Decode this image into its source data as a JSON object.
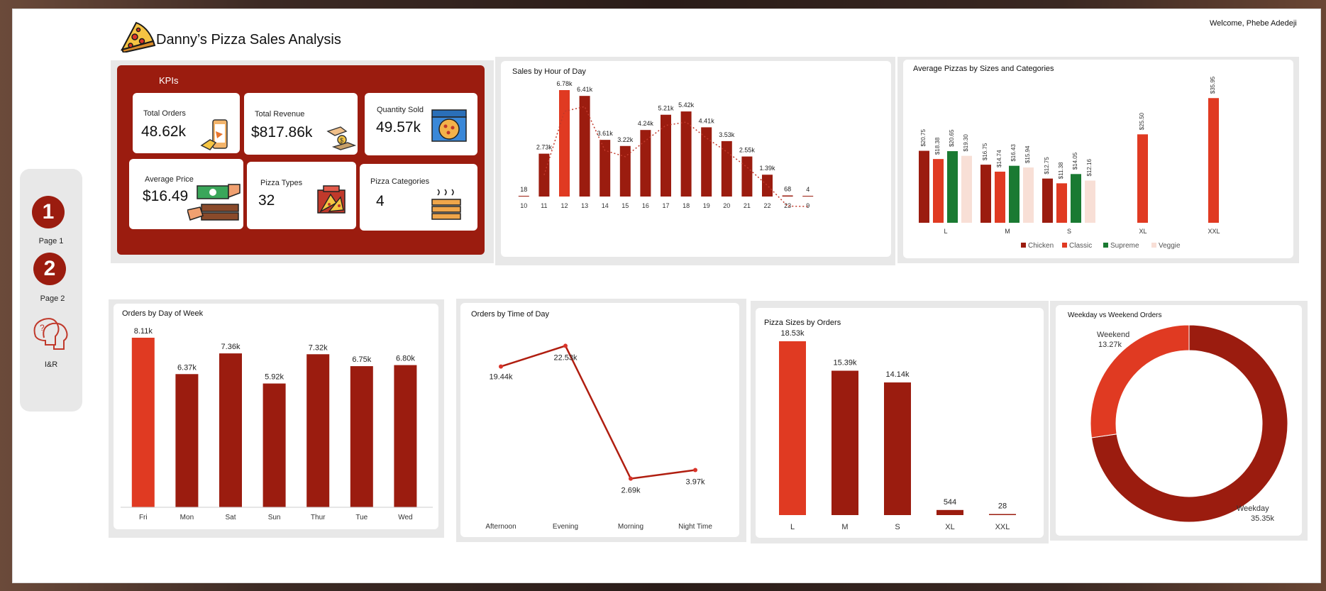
{
  "app": {
    "title": "Danny’s Pizza Sales Analysis",
    "welcome": "Welcome, Phebe Adedeji"
  },
  "nav": {
    "items": [
      {
        "number": "1",
        "label": "Page 1"
      },
      {
        "number": "2",
        "label": "Page 2"
      }
    ],
    "ir_label": "I&R"
  },
  "kpis": {
    "header": "KPIs",
    "total_orders": {
      "label": "Total Orders",
      "value": "48.62k"
    },
    "total_revenue": {
      "label": "Total Revenue",
      "value": "$817.86k"
    },
    "quantity_sold": {
      "label": "Quantity Sold",
      "value": "49.57k"
    },
    "average_price": {
      "label": "Average Price",
      "value": "$16.49"
    },
    "pizza_types": {
      "label": "Pizza Types",
      "value": "32"
    },
    "pizza_categories": {
      "label": "Pizza Categories",
      "value": "4"
    }
  },
  "colors": {
    "dark_red": "#9b1c0f",
    "bright_red": "#e03a22",
    "green": "#1a7a32",
    "light_pink": "#f8dfd6"
  },
  "chart_data": [
    {
      "id": "sales_by_hour",
      "type": "bar",
      "title": "Sales by Hour of Day",
      "categories": [
        "10",
        "11",
        "12",
        "13",
        "14",
        "15",
        "16",
        "17",
        "18",
        "19",
        "20",
        "21",
        "22",
        "23",
        "9"
      ],
      "values": [
        18,
        2730,
        6780,
        6410,
        3610,
        3220,
        4240,
        5210,
        5420,
        4410,
        3530,
        2550,
        1390,
        68,
        4
      ],
      "labels": [
        "18",
        "2.73k",
        "6.78k",
        "6.41k",
        "3.61k",
        "3.22k",
        "4.24k",
        "5.21k",
        "5.42k",
        "4.41k",
        "3.53k",
        "2.55k",
        "1.39k",
        "68",
        "4"
      ],
      "highlight_index": 2,
      "trendline": true
    },
    {
      "id": "avg_pizzas_sizes_categories",
      "type": "bar",
      "title": "Average Pizzas by Sizes and Categories",
      "categories": [
        "L",
        "M",
        "S",
        "XL",
        "XXL"
      ],
      "series": [
        {
          "name": "Chicken",
          "values": [
            20.75,
            16.75,
            12.75,
            null,
            null
          ]
        },
        {
          "name": "Classic",
          "values": [
            18.38,
            14.74,
            11.38,
            25.5,
            35.95
          ]
        },
        {
          "name": "Supreme",
          "values": [
            20.65,
            16.43,
            14.05,
            null,
            null
          ]
        },
        {
          "name": "Veggie",
          "values": [
            19.3,
            15.94,
            12.16,
            null,
            null
          ]
        }
      ],
      "labels": [
        [
          "$20.75",
          "$18.38",
          "$20.65",
          "$19.30"
        ],
        [
          "$16.75",
          "$14.74",
          "$16.43",
          "$15.94"
        ],
        [
          "$12.75",
          "$11.38",
          "$14.05",
          "$12.16"
        ],
        [
          null,
          "$25.50",
          null,
          null
        ],
        [
          null,
          "$35.95",
          null,
          null
        ]
      ],
      "legend": "bottom"
    },
    {
      "id": "orders_by_day",
      "type": "bar",
      "title": "Orders by Day of Week",
      "categories": [
        "Fri",
        "Mon",
        "Sat",
        "Sun",
        "Thur",
        "Tue",
        "Wed"
      ],
      "values": [
        8110,
        6370,
        7360,
        5920,
        7320,
        6750,
        6800
      ],
      "labels": [
        "8.11k",
        "6.37k",
        "7.36k",
        "5.92k",
        "7.32k",
        "6.75k",
        "6.80k"
      ],
      "highlight_index": 0
    },
    {
      "id": "orders_by_time",
      "type": "line",
      "title": "Orders by Time of Day",
      "categories": [
        "Afternoon",
        "Evening",
        "Morning",
        "Night Time"
      ],
      "values": [
        19440,
        22530,
        2690,
        3970
      ],
      "labels": [
        "19.44k",
        "22.53k",
        "2.69k",
        "3.97k"
      ]
    },
    {
      "id": "pizza_sizes_orders",
      "type": "bar",
      "title": "Pizza Sizes by Orders",
      "categories": [
        "L",
        "M",
        "S",
        "XL",
        "XXL"
      ],
      "values": [
        18530,
        15390,
        14140,
        544,
        28
      ],
      "labels": [
        "18.53k",
        "15.39k",
        "14.14k",
        "544",
        "28"
      ],
      "highlight_index": 0
    },
    {
      "id": "weekday_weekend",
      "type": "pie",
      "title": "Weekday vs Weekend Orders",
      "slices": [
        {
          "label": "Weekday",
          "value": 35350,
          "display": "35.35k"
        },
        {
          "label": "Weekend",
          "value": 13270,
          "display": "13.27k"
        }
      ]
    }
  ]
}
